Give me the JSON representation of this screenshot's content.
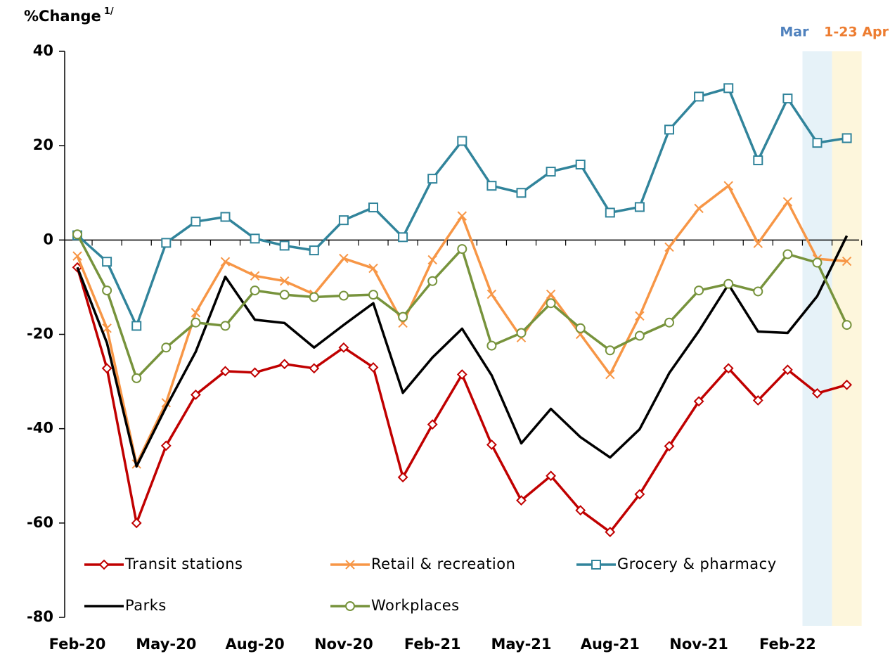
{
  "chart_data": {
    "type": "line",
    "ylabel": "%Change",
    "ylabel_note": "1/",
    "categories": [
      "Feb-20",
      null,
      null,
      "May-20",
      null,
      null,
      "Aug-20",
      null,
      null,
      "Nov-20",
      null,
      null,
      "Feb-21",
      null,
      null,
      "May-21",
      null,
      null,
      "Aug-21",
      null,
      null,
      "Nov-21",
      null,
      null,
      "Feb-22",
      null,
      null
    ],
    "ylim": [
      -80,
      40
    ],
    "yticks": [
      -80,
      -60,
      -40,
      -20,
      0,
      20,
      40
    ],
    "shaded": [
      {
        "label": "Mar",
        "at": 25,
        "color": "#e6f2f8",
        "label_color": "#4f81bd"
      },
      {
        "label": "1-23 Apr",
        "at": 26,
        "color": "#fdf6dc",
        "label_color": "#ed7d31"
      }
    ],
    "series": [
      {
        "name": "Transit stations",
        "color": "#c00000",
        "marker": "diamond",
        "values": [
          -5.8,
          -27.2,
          -60,
          -43.6,
          -32.8,
          -27.8,
          -28.1,
          -26.3,
          -27.2,
          -22.8,
          -27,
          -50.3,
          -39.1,
          -28.5,
          -43.4,
          -55.2,
          -50,
          -57.3,
          -61.9,
          -53.9,
          -43.7,
          -34.2,
          -27.2,
          -34,
          -27.5,
          -32.5,
          -30.7
        ]
      },
      {
        "name": "Retail & recreation",
        "color": "#f79646",
        "marker": "x",
        "values": [
          -3.4,
          -18.7,
          -47.5,
          -34.5,
          -15.4,
          -4.6,
          -7.6,
          -8.7,
          -11.5,
          -3.9,
          -6,
          -17.6,
          -4.2,
          5.1,
          -11.5,
          -20.7,
          -11.5,
          -20,
          -28.5,
          -16.1,
          -1.5,
          6.7,
          11.5,
          -0.7,
          8.1,
          -4,
          -4.5
        ]
      },
      {
        "name": "Grocery & pharmacy",
        "color": "#31849b",
        "marker": "square",
        "values": [
          1,
          -4.6,
          -18.2,
          -0.6,
          3.9,
          4.9,
          0.3,
          -1.2,
          -2.2,
          4.2,
          6.9,
          0.6,
          13,
          21,
          11.5,
          10,
          14.5,
          16,
          5.8,
          7,
          23.4,
          30.4,
          32.2,
          16.9,
          30,
          20.6,
          21.6
        ]
      },
      {
        "name": "Parks",
        "color": "#000000",
        "marker": "none",
        "values": [
          -5.8,
          -21.8,
          -48,
          -35.4,
          -23.7,
          -7.8,
          -16.9,
          -17.6,
          -22.8,
          -18,
          -13.4,
          -32.4,
          -24.9,
          -18.8,
          -28.7,
          -43.1,
          -35.8,
          -41.8,
          -46.1,
          -40.1,
          -28.2,
          -19.3,
          -9.4,
          -19.4,
          -19.7,
          -11.9,
          0.9
        ]
      },
      {
        "name": "Workplaces",
        "color": "#77933c",
        "marker": "circle",
        "values": [
          1.2,
          -10.7,
          -29.3,
          -22.8,
          -17.5,
          -18.2,
          -10.7,
          -11.6,
          -12.1,
          -11.8,
          -11.6,
          -16.3,
          -8.7,
          -1.9,
          -22.4,
          -19.7,
          -13.4,
          -18.7,
          -23.4,
          -20.3,
          -17.5,
          -10.7,
          -9.3,
          -10.9,
          -3,
          -4.8,
          -18
        ]
      }
    ]
  }
}
